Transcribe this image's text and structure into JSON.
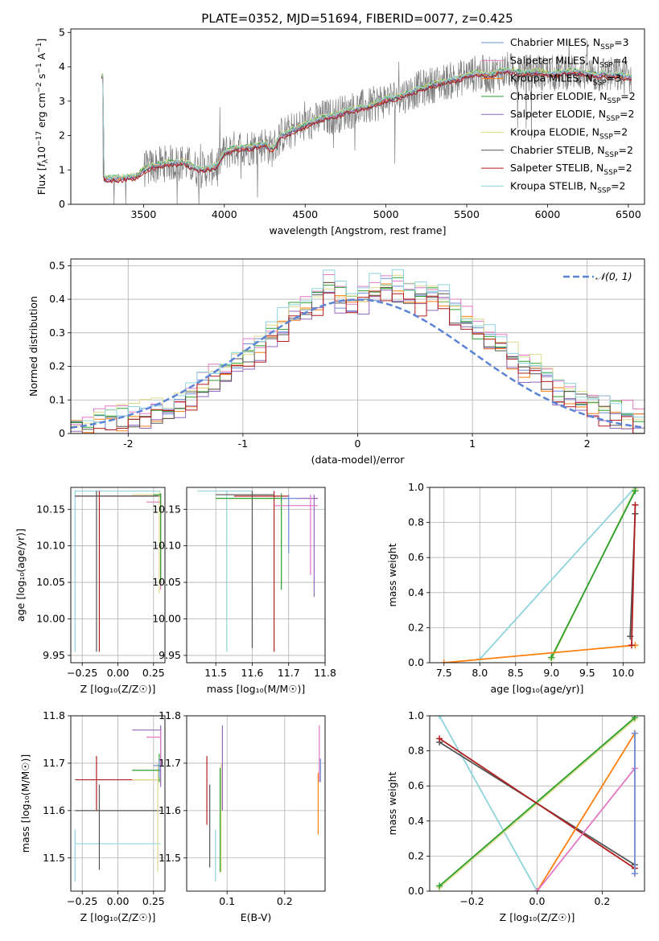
{
  "figure": {
    "title": "PLATE=0352, MJD=51694, FIBERID=0077, z=0.425"
  },
  "chart_data": [
    {
      "id": "spectrum",
      "type": "line",
      "xlabel": "wavelength [Angstrom, rest frame]",
      "ylabel_parts": [
        "Flux [",
        "f",
        "λ",
        "10",
        "−17",
        " erg cm",
        "−2",
        " s",
        "−1",
        " A",
        "−1",
        "]"
      ],
      "xlim": [
        3050,
        6600
      ],
      "ylim": [
        0,
        5.1
      ],
      "xticks": [
        3500,
        4000,
        4500,
        5000,
        5500,
        6000,
        6500
      ],
      "yticks": [
        0,
        1,
        2,
        3,
        4,
        5
      ],
      "grid": false,
      "legend": "top-right",
      "data": {
        "x": [
          3250,
          3300,
          3350,
          3400,
          3450,
          3500,
          3550,
          3600,
          3650,
          3700,
          3750,
          3800,
          3850,
          3900,
          3950,
          4000,
          4050,
          4100,
          4150,
          4200,
          4250,
          4300,
          4350,
          4400,
          4450,
          4500,
          4550,
          4600,
          4650,
          4700,
          4750,
          4800,
          4850,
          4900,
          4950,
          5000,
          5050,
          5100,
          5150,
          5200,
          5250,
          5300,
          5350,
          5400,
          5450,
          5500,
          5550,
          5600,
          5650,
          5700,
          5750,
          5800,
          5850,
          5900,
          5950,
          6000,
          6050,
          6100,
          6150,
          6200,
          6250,
          6300,
          6350,
          6400,
          6450,
          6500
        ],
        "y": [
          0.75,
          0.75,
          0.75,
          0.78,
          0.8,
          1.0,
          1.1,
          1.15,
          1.2,
          1.2,
          1.22,
          1.1,
          1.0,
          1.05,
          1.1,
          1.5,
          1.6,
          1.65,
          1.65,
          1.7,
          1.75,
          1.6,
          2.0,
          2.1,
          2.2,
          2.3,
          2.4,
          2.5,
          2.55,
          2.6,
          2.7,
          2.75,
          2.8,
          2.85,
          2.95,
          3.05,
          3.1,
          3.15,
          3.25,
          3.35,
          3.4,
          3.5,
          3.55,
          3.6,
          3.65,
          3.75,
          3.8,
          3.8,
          3.75,
          3.85,
          3.9,
          3.85,
          3.8,
          3.85,
          3.85,
          3.8,
          3.8,
          3.85,
          3.85,
          3.85,
          3.8,
          3.75,
          3.8,
          3.75,
          3.75,
          3.7
        ]
      },
      "series": [
        {
          "name": [
            "Chabrier MILES, N",
            "SSP",
            "=3"
          ],
          "color": "#6f8fd8",
          "offset": 0.02
        },
        {
          "name": [
            "Salpeter MILES, N",
            "SSP",
            "=4"
          ],
          "color": "#e377c2",
          "offset": -0.03
        },
        {
          "name": [
            "Kroupa MILES, N",
            "SSP",
            "=3"
          ],
          "color": "#ff7f0e",
          "offset": 0.0
        },
        {
          "name": [
            "Chabrier ELODIE, N",
            "SSP",
            "=2"
          ],
          "color": "#2ca02c",
          "offset": 0.04
        },
        {
          "name": [
            "Salpeter ELODIE, N",
            "SSP",
            "=2"
          ],
          "color": "#9467bd",
          "offset": -0.02
        },
        {
          "name": [
            "Kroupa ELODIE, N",
            "SSP",
            "=2"
          ],
          "color": "#dbdb8d",
          "offset": 0.06
        },
        {
          "name": [
            "Chabrier STELIB, N",
            "SSP",
            "=2"
          ],
          "color": "#555555",
          "offset": -0.05
        },
        {
          "name": [
            "Salpeter STELIB, N",
            "SSP",
            "=2"
          ],
          "color": "#b21f1f",
          "offset": -0.07
        },
        {
          "name": [
            "Kroupa STELIB, N",
            "SSP",
            "=2"
          ],
          "color": "#8fd3dd",
          "offset": 0.03
        }
      ]
    },
    {
      "id": "residuals",
      "type": "histogram",
      "xlabel": "(data-model)/error",
      "ylabel": "Normed distribution",
      "xlim": [
        -2.5,
        2.5
      ],
      "ylim": [
        0,
        0.52
      ],
      "xticks": [
        -2,
        -1,
        0,
        1,
        2
      ],
      "yticks": [
        0.0,
        0.1,
        0.2,
        0.3,
        0.4,
        0.5
      ],
      "grid": true,
      "legend": "top-right",
      "gaussian_label": "𝒩(0, 1)",
      "gaussian_color": "#5b84d6",
      "bin_edges": [
        -2.5,
        -2.4,
        -2.3,
        -2.2,
        -2.1,
        -2.0,
        -1.9,
        -1.8,
        -1.7,
        -1.6,
        -1.5,
        -1.4,
        -1.3,
        -1.2,
        -1.1,
        -1.0,
        -0.9,
        -0.8,
        -0.7,
        -0.6,
        -0.5,
        -0.4,
        -0.3,
        -0.2,
        -0.1,
        0.0,
        0.1,
        0.2,
        0.3,
        0.4,
        0.5,
        0.6,
        0.7,
        0.8,
        0.9,
        1.0,
        1.1,
        1.2,
        1.3,
        1.4,
        1.5,
        1.6,
        1.7,
        1.8,
        1.9,
        2.0,
        2.1,
        2.2,
        2.3,
        2.4,
        2.5
      ],
      "counts": [
        0.02,
        0.02,
        0.03,
        0.04,
        0.04,
        0.05,
        0.06,
        0.07,
        0.07,
        0.09,
        0.11,
        0.14,
        0.17,
        0.19,
        0.21,
        0.24,
        0.26,
        0.3,
        0.32,
        0.36,
        0.37,
        0.4,
        0.44,
        0.4,
        0.39,
        0.4,
        0.42,
        0.44,
        0.43,
        0.42,
        0.4,
        0.41,
        0.4,
        0.36,
        0.33,
        0.3,
        0.29,
        0.26,
        0.23,
        0.2,
        0.19,
        0.16,
        0.13,
        0.11,
        0.1,
        0.09,
        0.07,
        0.06,
        0.05,
        0.04
      ],
      "series": [
        {
          "color": "#6f8fd8",
          "offset": 0.0
        },
        {
          "color": "#e377c2",
          "offset": 0.02
        },
        {
          "color": "#ff7f0e",
          "offset": -0.01
        },
        {
          "color": "#2ca02c",
          "offset": 0.01
        },
        {
          "color": "#9467bd",
          "offset": -0.02
        },
        {
          "color": "#dbdb8d",
          "offset": 0.02
        },
        {
          "color": "#555555",
          "offset": -0.01
        },
        {
          "color": "#b21f1f",
          "offset": -0.02
        },
        {
          "color": "#8fd3dd",
          "offset": 0.03
        }
      ]
    },
    {
      "id": "age-vs-Z",
      "type": "errorbar",
      "xlabel": "Z [log₁₀(Z/Z☉)]",
      "ylabel": "age  [log₁₀(age/yr)]",
      "xlim": [
        -0.33,
        0.33
      ],
      "ylim": [
        9.94,
        10.18
      ],
      "xticks": [
        -0.25,
        0.0,
        0.25
      ],
      "xtick_labels": [
        "−0.25",
        "0.00",
        "0.25"
      ],
      "yticks": [
        9.95,
        10.0,
        10.05,
        10.1,
        10.15
      ],
      "ytick_labels": [
        "9.95",
        "10.00",
        "10.05",
        "10.10",
        "10.15"
      ],
      "grid": true,
      "points": [
        {
          "x": -0.3,
          "y": 10.175,
          "xl": -0.3,
          "xh": 0.3,
          "yl": 9.955,
          "yh": 10.176,
          "color": "#8fd3dd"
        },
        {
          "x": -0.13,
          "y": 10.168,
          "xl": -0.3,
          "xh": 0.3,
          "yl": 9.955,
          "yh": 10.175,
          "color": "#b21f1f"
        },
        {
          "x": -0.15,
          "y": 10.168,
          "xl": -0.3,
          "xh": 0.3,
          "yl": 9.955,
          "yh": 10.175,
          "color": "#555555"
        },
        {
          "x": 0.29,
          "y": 10.17,
          "xl": 0.1,
          "xh": 0.3,
          "yl": 10.035,
          "yh": 10.175,
          "color": "#dbdb8d"
        },
        {
          "x": 0.3,
          "y": 10.16,
          "xl": 0.2,
          "xh": 0.3,
          "yl": 10.04,
          "yh": 10.172,
          "color": "#e377c2"
        },
        {
          "x": 0.3,
          "y": 10.17,
          "xl": 0.25,
          "xh": 0.3,
          "yl": 10.05,
          "yh": 10.172,
          "color": "#2ca02c"
        }
      ]
    },
    {
      "id": "age-vs-mass",
      "type": "errorbar",
      "xlabel": "mass [log₁₀(M/M☉)]",
      "ylabel": "",
      "xlim": [
        11.42,
        11.8
      ],
      "ylim": [
        9.94,
        10.18
      ],
      "xticks": [
        11.5,
        11.6,
        11.7,
        11.8
      ],
      "xtick_labels": [
        "11.5",
        "11.6",
        "11.7",
        "11.8"
      ],
      "yticks": [
        9.95,
        10.0,
        10.05,
        10.1,
        10.15
      ],
      "ytick_labels": [
        "9.95",
        "10.00",
        "10.05",
        "10.10",
        "10.15"
      ],
      "grid": true,
      "points": [
        {
          "x": 11.53,
          "y": 10.175,
          "xl": 11.45,
          "xh": 11.6,
          "yl": 9.955,
          "yh": 10.176,
          "color": "#8fd3dd"
        },
        {
          "x": 11.66,
          "y": 10.168,
          "xl": 11.55,
          "xh": 11.7,
          "yl": 9.955,
          "yh": 10.175,
          "color": "#b21f1f"
        },
        {
          "x": 11.6,
          "y": 10.17,
          "xl": 11.5,
          "xh": 11.66,
          "yl": 9.96,
          "yh": 10.175,
          "color": "#555555"
        },
        {
          "x": 11.68,
          "y": 10.165,
          "xl": 11.5,
          "xh": 11.7,
          "yl": 10.04,
          "yh": 10.172,
          "color": "#2ca02c"
        },
        {
          "x": 11.77,
          "y": 10.165,
          "xl": 11.72,
          "xh": 11.78,
          "yl": 10.03,
          "yh": 10.17,
          "color": "#9467bd"
        },
        {
          "x": 11.76,
          "y": 10.155,
          "xl": 11.66,
          "xh": 11.78,
          "yl": 10.06,
          "yh": 10.17,
          "color": "#e377c2"
        },
        {
          "x": 11.7,
          "y": 10.165,
          "xl": 11.68,
          "xh": 11.73,
          "yl": 10.09,
          "yh": 10.17,
          "color": "#6f8fd8"
        }
      ]
    },
    {
      "id": "massweight-vs-age",
      "type": "line",
      "xlabel": "age  [log₁₀(age/yr)]",
      "ylabel": "mass weight",
      "xlim": [
        7.3,
        10.3
      ],
      "ylim": [
        0,
        1
      ],
      "xticks": [
        7.5,
        8.0,
        8.5,
        9.0,
        9.5,
        10.0
      ],
      "xtick_labels": [
        "7.5",
        "8.0",
        "8.5",
        "9.0",
        "9.5",
        "10.0"
      ],
      "yticks": [
        0,
        0.2,
        0.4,
        0.6,
        0.8,
        1.0
      ],
      "ytick_labels": [
        "0.0",
        "0.2",
        "0.4",
        "0.6",
        "0.8",
        "1.0"
      ],
      "grid": true,
      "series": [
        {
          "color": "#8fd3dd",
          "x": [
            8.0,
            10.17
          ],
          "y": [
            0.02,
            1.0
          ]
        },
        {
          "color": "#dbdb8d",
          "x": [
            9.0,
            10.17
          ],
          "y": [
            0.02,
            0.99
          ]
        },
        {
          "color": "#2ca02c",
          "x": [
            9.0,
            10.17
          ],
          "y": [
            0.03,
            0.98
          ]
        },
        {
          "color": "#ff7f0e",
          "x": [
            7.5,
            10.17
          ],
          "y": [
            0.0,
            0.1
          ]
        },
        {
          "color": "#555555",
          "x": [
            10.1,
            10.17
          ],
          "y": [
            0.15,
            0.85
          ]
        },
        {
          "color": "#b21f1f",
          "x": [
            10.12,
            10.17
          ],
          "y": [
            0.1,
            0.9
          ]
        }
      ]
    },
    {
      "id": "mass-vs-Z",
      "type": "errorbar",
      "xlabel": "Z [log₁₀(Z/Z☉)]",
      "ylabel": "mass [log₁₀(M/M☉)]",
      "xlim": [
        -0.33,
        0.33
      ],
      "ylim": [
        11.43,
        11.8
      ],
      "xticks": [
        -0.25,
        0.0,
        0.25
      ],
      "xtick_labels": [
        "−0.25",
        "0.00",
        "0.25"
      ],
      "yticks": [
        11.5,
        11.6,
        11.7,
        11.8
      ],
      "ytick_labels": [
        "11.5",
        "11.6",
        "11.7",
        "11.8"
      ],
      "grid": true,
      "points": [
        {
          "x": -0.3,
          "y": 11.53,
          "xl": -0.3,
          "xh": 0.3,
          "yl": 11.45,
          "yh": 11.56,
          "color": "#8fd3dd"
        },
        {
          "x": -0.15,
          "y": 11.665,
          "xl": -0.3,
          "xh": 0.3,
          "yl": 11.6,
          "yh": 11.715,
          "color": "#b21f1f"
        },
        {
          "x": -0.13,
          "y": 11.6,
          "xl": -0.3,
          "xh": 0.3,
          "yl": 11.475,
          "yh": 11.655,
          "color": "#555555"
        },
        {
          "x": 0.28,
          "y": 11.665,
          "xl": 0.1,
          "xh": 0.3,
          "yl": 11.47,
          "yh": 11.7,
          "color": "#dbdb8d"
        },
        {
          "x": 0.29,
          "y": 11.685,
          "xl": 0.1,
          "xh": 0.3,
          "yl": 11.66,
          "yh": 11.72,
          "color": "#2ca02c"
        },
        {
          "x": 0.3,
          "y": 11.77,
          "xl": 0.1,
          "xh": 0.3,
          "yl": 11.65,
          "yh": 11.78,
          "color": "#9467bd"
        },
        {
          "x": 0.3,
          "y": 11.755,
          "xl": 0.2,
          "xh": 0.3,
          "yl": 11.7,
          "yh": 11.77,
          "color": "#e377c2"
        },
        {
          "x": 0.29,
          "y": 11.695,
          "xl": 0.25,
          "xh": 0.3,
          "yl": 11.67,
          "yh": 11.71,
          "color": "#6f8fd8"
        }
      ]
    },
    {
      "id": "mass-vs-EBV",
      "type": "errorbar",
      "xlabel": "E(B-V)",
      "ylabel": "",
      "xlim": [
        0.03,
        0.27
      ],
      "ylim": [
        11.43,
        11.8
      ],
      "xticks": [
        0.1,
        0.2
      ],
      "xtick_labels": [
        "0.1",
        "0.2"
      ],
      "yticks": [
        11.5,
        11.6,
        11.7,
        11.8
      ],
      "ytick_labels": [
        "11.5",
        "11.6",
        "11.7",
        "11.8"
      ],
      "grid": true,
      "points": [
        {
          "x": 0.065,
          "y": 11.66,
          "xl": 0.065,
          "xh": 0.065,
          "yl": 11.57,
          "yh": 11.715,
          "color": "#b21f1f"
        },
        {
          "x": 0.07,
          "y": 11.6,
          "xl": 0.07,
          "xh": 0.07,
          "yl": 11.48,
          "yh": 11.655,
          "color": "#555555"
        },
        {
          "x": 0.08,
          "y": 11.52,
          "xl": 0.08,
          "xh": 0.08,
          "yl": 11.45,
          "yh": 11.56,
          "color": "#8fd3dd"
        },
        {
          "x": 0.09,
          "y": 11.66,
          "xl": 0.09,
          "xh": 0.09,
          "yl": 11.47,
          "yh": 11.7,
          "color": "#dbdb8d"
        },
        {
          "x": 0.092,
          "y": 11.7,
          "xl": 0.092,
          "xh": 0.092,
          "yl": 11.6,
          "yh": 11.78,
          "color": "#9467bd"
        },
        {
          "x": 0.088,
          "y": 11.65,
          "xl": 0.088,
          "xh": 0.088,
          "yl": 11.47,
          "yh": 11.69,
          "color": "#2ca02c"
        },
        {
          "x": 0.26,
          "y": 11.72,
          "xl": 0.26,
          "xh": 0.26,
          "yl": 11.66,
          "yh": 11.78,
          "color": "#e377c2"
        },
        {
          "x": 0.258,
          "y": 11.62,
          "xl": 0.258,
          "xh": 0.258,
          "yl": 11.55,
          "yh": 11.68,
          "color": "#ff7f0e"
        },
        {
          "x": 0.262,
          "y": 11.69,
          "xl": 0.262,
          "xh": 0.262,
          "yl": 11.66,
          "yh": 11.71,
          "color": "#6f8fd8"
        }
      ]
    },
    {
      "id": "massweight-vs-Z",
      "type": "line",
      "xlabel": "Z [log₁₀(Z/Z☉)]",
      "ylabel": "mass weight",
      "xlim": [
        -0.33,
        0.33
      ],
      "ylim": [
        0,
        1
      ],
      "xticks": [
        -0.2,
        0.0,
        0.2
      ],
      "xtick_labels": [
        "−0.2",
        "0.0",
        "0.2"
      ],
      "yticks": [
        0,
        0.2,
        0.4,
        0.6,
        0.8,
        1.0
      ],
      "ytick_labels": [
        "0.0",
        "0.2",
        "0.4",
        "0.6",
        "0.8",
        "1.0"
      ],
      "grid": true,
      "series": [
        {
          "color": "#8fd3dd",
          "x": [
            -0.3,
            0.0
          ],
          "y": [
            1.0,
            0.0
          ]
        },
        {
          "color": "#dbdb8d",
          "x": [
            -0.3,
            0.3
          ],
          "y": [
            0.02,
            0.98
          ]
        },
        {
          "color": "#2ca02c",
          "x": [
            -0.3,
            0.3
          ],
          "y": [
            0.03,
            0.99
          ]
        },
        {
          "color": "#555555",
          "x": [
            -0.3,
            0.3
          ],
          "y": [
            0.85,
            0.15
          ]
        },
        {
          "color": "#b21f1f",
          "x": [
            -0.3,
            0.3
          ],
          "y": [
            0.87,
            0.13
          ]
        },
        {
          "color": "#ff7f0e",
          "x": [
            0.0,
            0.3,
            0.3
          ],
          "y": [
            0.0,
            0.9,
            0.1
          ]
        },
        {
          "color": "#e377c2",
          "x": [
            0.0,
            0.3
          ],
          "y": [
            0.0,
            0.7
          ]
        },
        {
          "color": "#6f8fd8",
          "x": [
            0.3,
            0.3
          ],
          "y": [
            0.1,
            0.9
          ]
        }
      ]
    }
  ]
}
